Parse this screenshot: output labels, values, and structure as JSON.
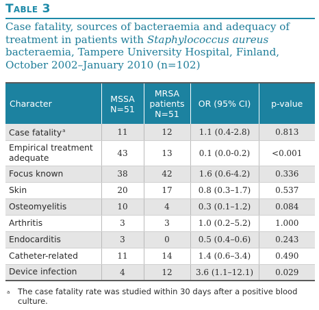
{
  "label": "Table 3",
  "caption": {
    "before": "Case fatality, sources of bacteraemia and adequacy of treatment in patients with ",
    "organism": "Staphylococcus aureus",
    "after": " bacteraemia, Tampere University Hospital, Finland, October 2002–January 2010 (n=102)"
  },
  "headers": {
    "character": "Character",
    "mssa_line1": "MSSA",
    "mssa_line2": "N=51",
    "mrsa_line1": "MRSA",
    "mrsa_line2": "patients",
    "mrsa_line3": "N=51",
    "or": "OR (95% CI)",
    "p": "p-value"
  },
  "rows": [
    {
      "character": "Case fatality",
      "mark": "a",
      "mssa": "11",
      "mrsa": "12",
      "or": "1.1 (0.4-2.8)",
      "p": "0.813"
    },
    {
      "character": "Empirical treatment adequate",
      "mark": "",
      "mssa": "43",
      "mrsa": "13",
      "or": "0.1 (0.0-0.2)",
      "p": "<0.001"
    },
    {
      "character": "Focus known",
      "mark": "",
      "mssa": "38",
      "mrsa": "42",
      "or": "1.6 (0.6-4.2)",
      "p": "0.336"
    },
    {
      "character": "Skin",
      "mark": "",
      "mssa": "20",
      "mrsa": "17",
      "or": "0.8 (0.3–1.7)",
      "p": "0.537"
    },
    {
      "character": "Osteomyelitis",
      "mark": "",
      "mssa": "10",
      "mrsa": "4",
      "or": "0.3 (0.1–1.2)",
      "p": "0.084"
    },
    {
      "character": "Arthritis",
      "mark": "",
      "mssa": "3",
      "mrsa": "3",
      "or": "1.0 (0.2–5.2)",
      "p": "1.000"
    },
    {
      "character": "Endocarditis",
      "mark": "",
      "mssa": "3",
      "mrsa": "0",
      "or": "0.5 (0.4–0.6)",
      "p": "0.243"
    },
    {
      "character": "Catheter-related",
      "mark": "",
      "mssa": "11",
      "mrsa": "14",
      "or": "1.4 (0.6–3.4)",
      "p": "0.490"
    },
    {
      "character": "Device infection",
      "mark": "",
      "mssa": "4",
      "mrsa": "12",
      "or": "3.6 (1.1–12.1)",
      "p": "0.029"
    }
  ],
  "footnote": {
    "mark": "a",
    "text": "The case fatality rate was studied within 30 days after a positive blood culture."
  }
}
